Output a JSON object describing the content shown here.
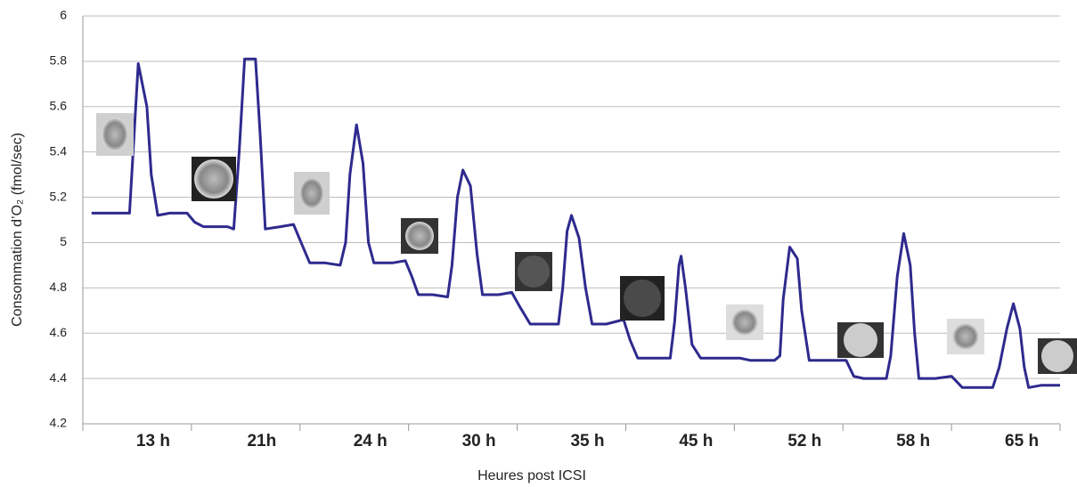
{
  "chart_data": {
    "type": "line",
    "x_label": "Heures post ICSI",
    "y_label": "Consommation d’O₂ (fmol/sec)",
    "categories": [
      "13 h",
      "21h",
      "24 h",
      "30 h",
      "35 h",
      "45 h",
      "52 h",
      "58 h",
      "65 h"
    ],
    "xlim": [
      0,
      900
    ],
    "ylim": [
      4.2,
      6
    ],
    "yticks": [
      4.2,
      4.4,
      4.6,
      4.8,
      5,
      5.2,
      5.4,
      5.6,
      5.8,
      6
    ],
    "grid": true,
    "series": [
      {
        "color": "#2e2a8e",
        "x": [
          8,
          39,
          43,
          51,
          59,
          63,
          69,
          80,
          96,
          103,
          111,
          133,
          139,
          144,
          149,
          159,
          163,
          168,
          182,
          194,
          201,
          209,
          223,
          237,
          242,
          246,
          252,
          258,
          263,
          268,
          285,
          297,
          303,
          309,
          322,
          336,
          340,
          345,
          350,
          357,
          363,
          368,
          383,
          395,
          402,
          412,
          424,
          438,
          442,
          446,
          450,
          457,
          463,
          469,
          482,
          498,
          504,
          511,
          527,
          541,
          545,
          549,
          551,
          555,
          561,
          569,
          588,
          605,
          615,
          637,
          642,
          645,
          651,
          658,
          662,
          669,
          687,
          703,
          710,
          719,
          740,
          744,
          750,
          756,
          762,
          766,
          770,
          785,
          800,
          810,
          838,
          844,
          851,
          857,
          863,
          867,
          871,
          883,
          900
        ],
        "values": [
          5.13,
          5.13,
          5.13,
          5.79,
          5.6,
          5.3,
          5.12,
          5.13,
          5.13,
          5.09,
          5.07,
          5.07,
          5.06,
          5.4,
          5.81,
          5.81,
          5.5,
          5.06,
          5.07,
          5.08,
          5.0,
          4.91,
          4.91,
          4.9,
          5.0,
          5.3,
          5.52,
          5.35,
          5.0,
          4.91,
          4.91,
          4.92,
          4.85,
          4.77,
          4.77,
          4.76,
          4.9,
          5.2,
          5.32,
          5.25,
          4.95,
          4.77,
          4.77,
          4.78,
          4.72,
          4.64,
          4.64,
          4.64,
          4.8,
          5.05,
          5.12,
          5.02,
          4.8,
          4.64,
          4.64,
          4.66,
          4.57,
          4.49,
          4.49,
          4.49,
          4.65,
          4.9,
          4.94,
          4.8,
          4.55,
          4.49,
          4.49,
          4.49,
          4.48,
          4.48,
          4.5,
          4.75,
          4.98,
          4.93,
          4.7,
          4.48,
          4.48,
          4.48,
          4.41,
          4.4,
          4.4,
          4.5,
          4.85,
          5.04,
          4.9,
          4.6,
          4.4,
          4.4,
          4.41,
          4.36,
          4.36,
          4.45,
          4.62,
          4.73,
          4.62,
          4.45,
          4.36,
          4.37,
          4.37
        ]
      }
    ]
  }
}
